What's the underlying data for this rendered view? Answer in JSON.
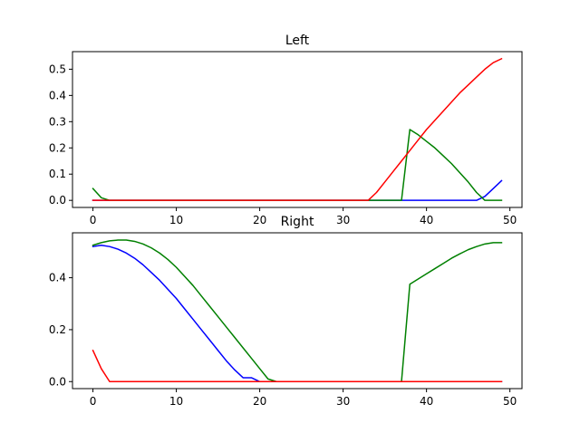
{
  "chart_data": [
    {
      "type": "line",
      "title": "Left",
      "xlabel": "",
      "ylabel": "",
      "xlim": [
        -2.45,
        51.45
      ],
      "ylim": [
        -0.027,
        0.567
      ],
      "xticks": [
        0,
        10,
        20,
        30,
        40,
        50
      ],
      "yticks": [
        0.0,
        0.1,
        0.2,
        0.3,
        0.4,
        0.5
      ],
      "xtick_labels": [
        "0",
        "10",
        "20",
        "30",
        "40",
        "50"
      ],
      "ytick_labels": [
        "0.0",
        "0.1",
        "0.2",
        "0.3",
        "0.4",
        "0.5"
      ],
      "grid": false,
      "legend": "none",
      "series": [
        {
          "color": "#0000ff",
          "x": [
            0,
            1,
            2,
            3,
            4,
            5,
            6,
            7,
            8,
            9,
            10,
            11,
            12,
            13,
            14,
            15,
            16,
            17,
            18,
            19,
            20,
            21,
            22,
            23,
            24,
            25,
            26,
            27,
            28,
            29,
            30,
            31,
            32,
            33,
            34,
            35,
            36,
            37,
            38,
            39,
            40,
            41,
            42,
            43,
            44,
            45,
            46,
            47,
            48,
            49
          ],
          "values": [
            0,
            0,
            0,
            0,
            0,
            0,
            0,
            0,
            0,
            0,
            0,
            0,
            0,
            0,
            0,
            0,
            0,
            0,
            0,
            0,
            0,
            0,
            0,
            0,
            0,
            0,
            0,
            0,
            0,
            0,
            0,
            0,
            0,
            0,
            0,
            0,
            0,
            0,
            0,
            0,
            0,
            0,
            0,
            0,
            0,
            0,
            0,
            0.015,
            0.045,
            0.075
          ]
        },
        {
          "color": "#008000",
          "x": [
            0,
            1,
            2,
            3,
            4,
            5,
            6,
            7,
            8,
            9,
            10,
            11,
            12,
            13,
            14,
            15,
            16,
            17,
            18,
            19,
            20,
            21,
            22,
            23,
            24,
            25,
            26,
            27,
            28,
            29,
            30,
            31,
            32,
            33,
            34,
            35,
            36,
            37,
            38,
            39,
            40,
            41,
            42,
            43,
            44,
            45,
            46,
            47,
            48,
            49
          ],
          "values": [
            0.045,
            0.01,
            0,
            0,
            0,
            0,
            0,
            0,
            0,
            0,
            0,
            0,
            0,
            0,
            0,
            0,
            0,
            0,
            0,
            0,
            0,
            0,
            0,
            0,
            0,
            0,
            0,
            0,
            0,
            0,
            0,
            0,
            0,
            0,
            0,
            0,
            0,
            0,
            0.27,
            0.25,
            0.225,
            0.2,
            0.17,
            0.14,
            0.105,
            0.07,
            0.03,
            0,
            0,
            0
          ]
        },
        {
          "color": "#ff0000",
          "x": [
            0,
            1,
            2,
            3,
            4,
            5,
            6,
            7,
            8,
            9,
            10,
            11,
            12,
            13,
            14,
            15,
            16,
            17,
            18,
            19,
            20,
            21,
            22,
            23,
            24,
            25,
            26,
            27,
            28,
            29,
            30,
            31,
            32,
            33,
            34,
            35,
            36,
            37,
            38,
            39,
            40,
            41,
            42,
            43,
            44,
            45,
            46,
            47,
            48,
            49
          ],
          "values": [
            0,
            0,
            0,
            0,
            0,
            0,
            0,
            0,
            0,
            0,
            0,
            0,
            0,
            0,
            0,
            0,
            0,
            0,
            0,
            0,
            0,
            0,
            0,
            0,
            0,
            0,
            0,
            0,
            0,
            0,
            0,
            0,
            0,
            0,
            0.03,
            0.07,
            0.11,
            0.15,
            0.19,
            0.23,
            0.27,
            0.305,
            0.34,
            0.375,
            0.41,
            0.44,
            0.47,
            0.5,
            0.525,
            0.54
          ]
        }
      ]
    },
    {
      "type": "line",
      "title": "Right",
      "xlabel": "",
      "ylabel": "",
      "xlim": [
        -2.45,
        51.45
      ],
      "ylim": [
        -0.027,
        0.573
      ],
      "xticks": [
        0,
        10,
        20,
        30,
        40,
        50
      ],
      "yticks": [
        0.0,
        0.2,
        0.4
      ],
      "xtick_labels": [
        "0",
        "10",
        "20",
        "30",
        "40",
        "50"
      ],
      "ytick_labels": [
        "0.0",
        "0.2",
        "0.4"
      ],
      "grid": false,
      "legend": "none",
      "series": [
        {
          "color": "#0000ff",
          "x": [
            0,
            1,
            2,
            3,
            4,
            5,
            6,
            7,
            8,
            9,
            10,
            11,
            12,
            13,
            14,
            15,
            16,
            17,
            18,
            19,
            20,
            21,
            22,
            23,
            24,
            25,
            26,
            27,
            28,
            29,
            30,
            31,
            32,
            33,
            34,
            35,
            36,
            37,
            38,
            39,
            40,
            41,
            42,
            43,
            44,
            45,
            46,
            47,
            48,
            49
          ],
          "values": [
            0.52,
            0.525,
            0.52,
            0.51,
            0.495,
            0.475,
            0.45,
            0.42,
            0.39,
            0.355,
            0.32,
            0.28,
            0.24,
            0.2,
            0.16,
            0.12,
            0.08,
            0.045,
            0.015,
            0.015,
            0,
            0,
            0,
            0,
            0,
            0,
            0,
            0,
            0,
            0,
            0,
            0,
            0,
            0,
            0,
            0,
            0,
            0,
            0,
            0,
            0,
            0,
            0,
            0,
            0,
            0,
            0,
            0,
            0,
            0
          ]
        },
        {
          "color": "#008000",
          "x": [
            0,
            1,
            2,
            3,
            4,
            5,
            6,
            7,
            8,
            9,
            10,
            11,
            12,
            13,
            14,
            15,
            16,
            17,
            18,
            19,
            20,
            21,
            22,
            23,
            24,
            25,
            26,
            27,
            28,
            29,
            30,
            31,
            32,
            33,
            34,
            35,
            36,
            37,
            38,
            39,
            40,
            41,
            42,
            43,
            44,
            45,
            46,
            47,
            48,
            49
          ],
          "values": [
            0.525,
            0.535,
            0.542,
            0.545,
            0.545,
            0.54,
            0.53,
            0.515,
            0.495,
            0.47,
            0.44,
            0.405,
            0.37,
            0.33,
            0.29,
            0.25,
            0.21,
            0.17,
            0.13,
            0.09,
            0.05,
            0.01,
            0,
            0,
            0,
            0,
            0,
            0,
            0,
            0,
            0,
            0,
            0,
            0,
            0,
            0,
            0,
            0,
            0.375,
            0.395,
            0.415,
            0.435,
            0.455,
            0.475,
            0.492,
            0.508,
            0.52,
            0.53,
            0.535,
            0.535
          ]
        },
        {
          "color": "#ff0000",
          "x": [
            0,
            1,
            2,
            3,
            4,
            5,
            6,
            7,
            8,
            9,
            10,
            11,
            12,
            13,
            14,
            15,
            16,
            17,
            18,
            19,
            20,
            21,
            22,
            23,
            24,
            25,
            26,
            27,
            28,
            29,
            30,
            31,
            32,
            33,
            34,
            35,
            36,
            37,
            38,
            39,
            40,
            41,
            42,
            43,
            44,
            45,
            46,
            47,
            48,
            49
          ],
          "values": [
            0.12,
            0.05,
            0,
            0,
            0,
            0,
            0,
            0,
            0,
            0,
            0,
            0,
            0,
            0,
            0,
            0,
            0,
            0,
            0,
            0,
            0,
            0,
            0,
            0,
            0,
            0,
            0,
            0,
            0,
            0,
            0,
            0,
            0,
            0,
            0,
            0,
            0,
            0,
            0,
            0,
            0,
            0,
            0,
            0,
            0,
            0,
            0,
            0,
            0,
            0
          ]
        }
      ]
    }
  ]
}
